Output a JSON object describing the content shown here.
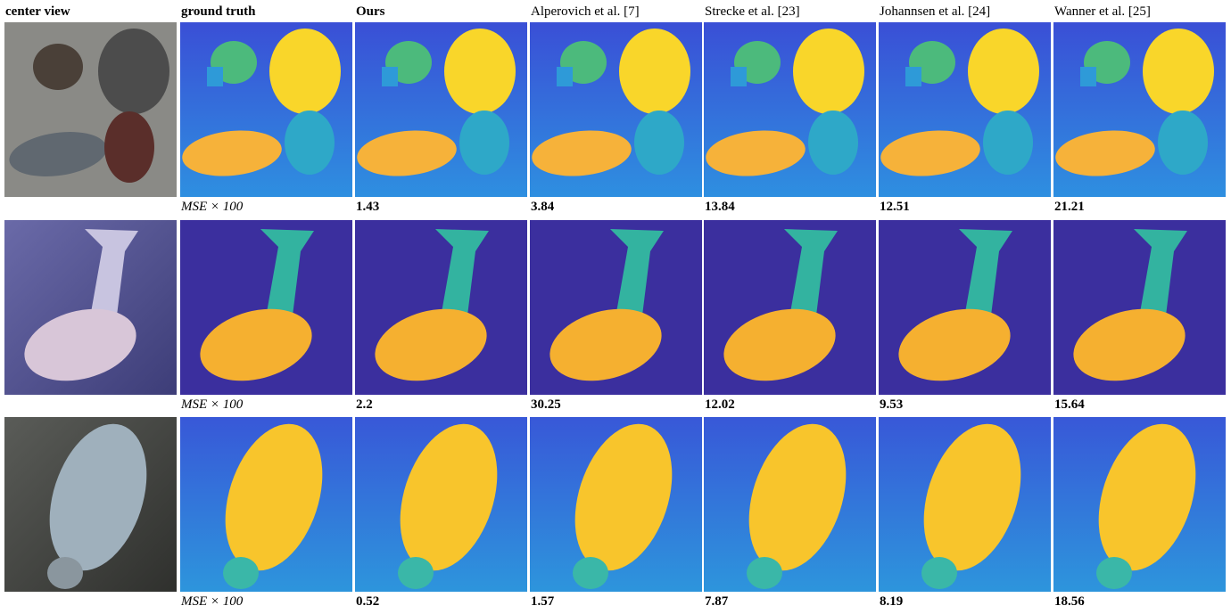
{
  "header": {
    "columns": [
      "center view",
      "ground truth",
      "Ours",
      "Alperovich et al. [7]",
      "Strecke et al. [23]",
      "Johannsen et al. [24]",
      "Wanner et al. [25]"
    ]
  },
  "rows": [
    {
      "mse_label": "MSE × 100",
      "mse": [
        1.43,
        3.84,
        13.84,
        12.51,
        21.21
      ]
    },
    {
      "mse_label": "MSE × 100",
      "mse": [
        2.2,
        30.25,
        12.02,
        9.53,
        15.64
      ]
    },
    {
      "mse_label": "MSE × 100",
      "mse": [
        0.52,
        1.57,
        7.87,
        8.19,
        18.56
      ]
    }
  ]
}
